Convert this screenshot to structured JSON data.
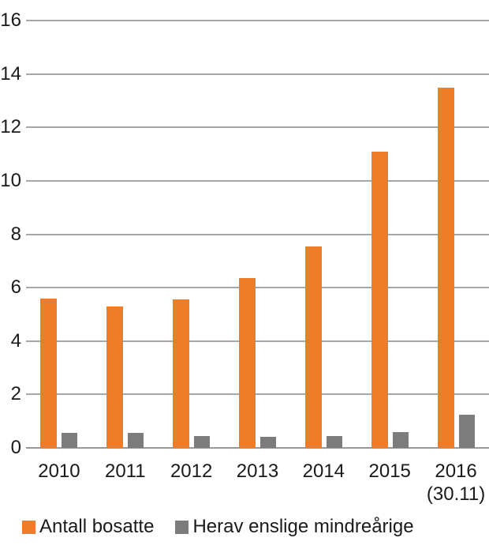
{
  "chart_data": {
    "type": "bar",
    "categories": [
      "2010",
      "2011",
      "2012",
      "2013",
      "2014",
      "2015",
      "2016 (30.11)"
    ],
    "category_lines": [
      [
        "2010"
      ],
      [
        "2011"
      ],
      [
        "2012"
      ],
      [
        "2013"
      ],
      [
        "2014"
      ],
      [
        "2015"
      ],
      [
        "2016",
        "(30.11)"
      ]
    ],
    "series": [
      {
        "name": "Antall bosatte",
        "color": "#EF7C28",
        "values": [
          5.6,
          5.3,
          5.55,
          6.35,
          7.55,
          11.1,
          13.5
        ]
      },
      {
        "name": "Herav enslige mindreårige",
        "color": "#7C7C7C",
        "values": [
          0.55,
          0.55,
          0.45,
          0.4,
          0.45,
          0.6,
          1.25
        ]
      }
    ],
    "ylim": [
      0,
      16
    ],
    "yticks": [
      0,
      2,
      4,
      6,
      8,
      10,
      12,
      14,
      16
    ],
    "grid": true,
    "legend_position": "bottom",
    "colors": {
      "gridline": "#A6A6A6",
      "axis_line": "#999999",
      "text": "#1A1A1A",
      "background": "#FFFFFF"
    }
  }
}
